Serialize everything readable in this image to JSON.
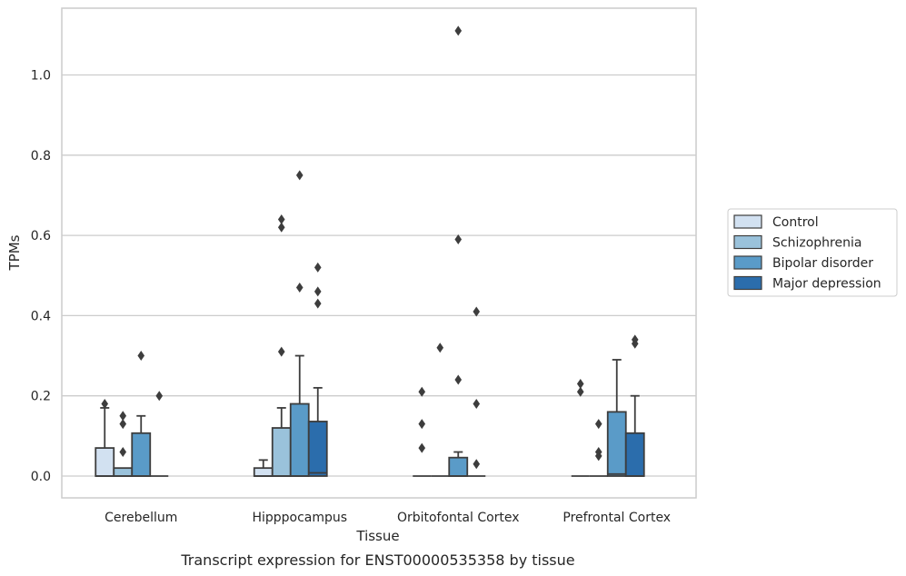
{
  "caption": "Transcript expression for ENST00000535358 by tissue",
  "chart_data": {
    "type": "boxplot",
    "xlabel": "Tissue",
    "ylabel": "TPMs",
    "ylim": [
      -0.055,
      1.17
    ],
    "yticks": [
      "0.0",
      "0.2",
      "0.4",
      "0.6",
      "0.8",
      "1.0"
    ],
    "grid": "horizontal",
    "legend_position": "right",
    "categories": [
      "Cerebellum",
      "Hipppocampus",
      "Orbitofontal Cortex",
      "Prefrontal Cortex"
    ],
    "series": [
      {
        "name": "Control",
        "color": "#d2e1f1",
        "boxes": [
          {
            "q1": 0,
            "median": 0,
            "q3": 0.07,
            "whisker_low": 0,
            "whisker_high": 0.17,
            "outliers": [
              0.18
            ]
          },
          {
            "q1": 0,
            "median": 0,
            "q3": 0.02,
            "whisker_low": 0,
            "whisker_high": 0.04,
            "outliers": []
          },
          {
            "q1": 0,
            "median": 0,
            "q3": 0,
            "whisker_low": 0,
            "whisker_high": 0,
            "outliers": [
              0.07,
              0.13,
              0.21
            ]
          },
          {
            "q1": 0,
            "median": 0,
            "q3": 0,
            "whisker_low": 0,
            "whisker_high": 0,
            "outliers": [
              0.21,
              0.23
            ]
          }
        ]
      },
      {
        "name": "Schizophrenia",
        "color": "#9ac2db",
        "boxes": [
          {
            "q1": 0,
            "median": 0,
            "q3": 0.02,
            "whisker_low": 0,
            "whisker_high": 0.02,
            "outliers": [
              0.06,
              0.13,
              0.15
            ]
          },
          {
            "q1": 0,
            "median": 0,
            "q3": 0.12,
            "whisker_low": 0,
            "whisker_high": 0.17,
            "outliers": [
              0.31,
              0.62,
              0.64
            ]
          },
          {
            "q1": 0,
            "median": 0,
            "q3": 0,
            "whisker_low": 0,
            "whisker_high": 0,
            "outliers": [
              0.32
            ]
          },
          {
            "q1": 0,
            "median": 0,
            "q3": 0,
            "whisker_low": 0,
            "whisker_high": 0,
            "outliers": [
              0.05,
              0.06,
              0.13
            ]
          }
        ]
      },
      {
        "name": "Bipolar disorder",
        "color": "#5a9bc8",
        "boxes": [
          {
            "q1": 0,
            "median": 0,
            "q3": 0.107,
            "whisker_low": 0,
            "whisker_high": 0.15,
            "outliers": [
              0.3
            ]
          },
          {
            "q1": 0,
            "median": 0,
            "q3": 0.18,
            "whisker_low": 0,
            "whisker_high": 0.3,
            "outliers": [
              0.47,
              0.75
            ]
          },
          {
            "q1": 0,
            "median": 0,
            "q3": 0.046,
            "whisker_low": 0,
            "whisker_high": 0.06,
            "outliers": [
              0.24,
              0.59,
              1.11
            ]
          },
          {
            "q1": 0,
            "median": 0.005,
            "q3": 0.16,
            "whisker_low": 0,
            "whisker_high": 0.29,
            "outliers": []
          }
        ]
      },
      {
        "name": "Major depression",
        "color": "#2b6dac",
        "boxes": [
          {
            "q1": 0,
            "median": 0,
            "q3": 0,
            "whisker_low": 0,
            "whisker_high": 0,
            "outliers": [
              0.2
            ]
          },
          {
            "q1": 0,
            "median": 0.008,
            "q3": 0.136,
            "whisker_low": 0,
            "whisker_high": 0.22,
            "outliers": [
              0.43,
              0.46,
              0.52
            ]
          },
          {
            "q1": 0,
            "median": 0,
            "q3": 0,
            "whisker_low": 0,
            "whisker_high": 0,
            "outliers": [
              0.03,
              0.18,
              0.41
            ]
          },
          {
            "q1": 0,
            "median": 0,
            "q3": 0.107,
            "whisker_low": 0,
            "whisker_high": 0.2,
            "outliers": [
              0.33,
              0.34
            ]
          }
        ]
      }
    ]
  }
}
